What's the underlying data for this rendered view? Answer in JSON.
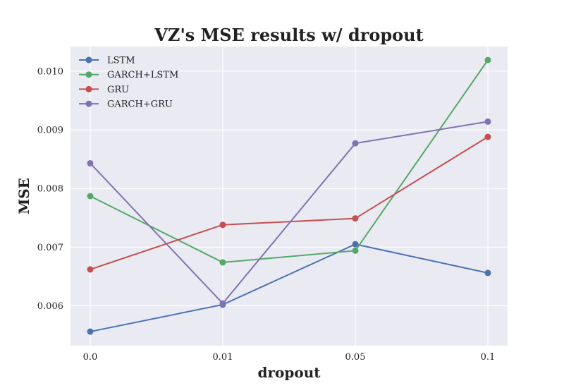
{
  "chart_data": {
    "type": "line",
    "title": "VZ's MSE results w/ dropout",
    "xlabel": "dropout",
    "ylabel": "MSE",
    "categories": [
      "0.0",
      "0.01",
      "0.05",
      "0.1"
    ],
    "ylim": [
      0.00532,
      0.01042
    ],
    "yticks": [
      0.006,
      0.007,
      0.008,
      0.009,
      0.01
    ],
    "ytick_labels": [
      "0.006",
      "0.007",
      "0.008",
      "0.009",
      "0.010"
    ],
    "grid": true,
    "legend_position": "top-left",
    "series": [
      {
        "name": "LSTM",
        "color": "#4c72b0",
        "values": [
          0.00556,
          0.00602,
          0.00705,
          0.00656
        ]
      },
      {
        "name": "GARCH+LSTM",
        "color": "#55a868",
        "values": [
          0.00787,
          0.00674,
          0.00694,
          0.01019
        ]
      },
      {
        "name": "GRU",
        "color": "#c44e52",
        "values": [
          0.00662,
          0.00738,
          0.00749,
          0.00888
        ]
      },
      {
        "name": "GARCH+GRU",
        "color": "#8172b2",
        "values": [
          0.00843,
          0.00604,
          0.00877,
          0.00914
        ]
      }
    ]
  }
}
